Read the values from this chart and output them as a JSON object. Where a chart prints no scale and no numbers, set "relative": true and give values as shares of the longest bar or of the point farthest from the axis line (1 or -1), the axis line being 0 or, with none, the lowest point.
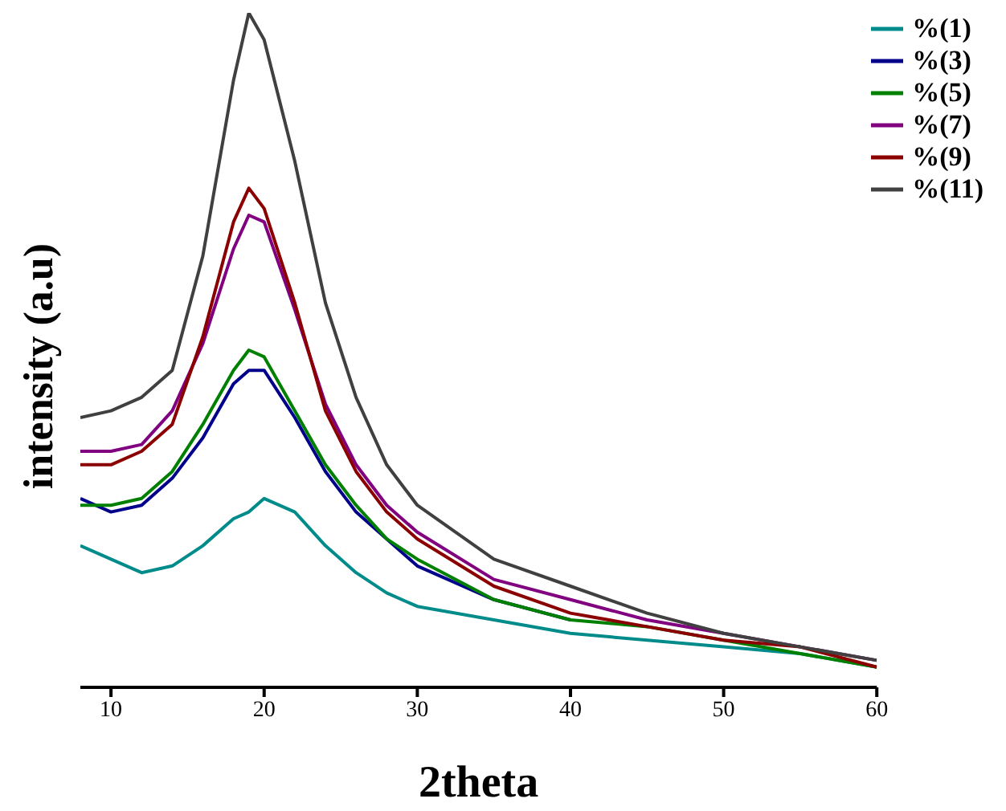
{
  "chart_data": {
    "type": "line",
    "relative": true,
    "xlabel": "2theta",
    "ylabel": "intensity (a.u)",
    "x": [
      8,
      10,
      12,
      14,
      16,
      18,
      19,
      20,
      22,
      24,
      26,
      28,
      30,
      35,
      40,
      45,
      50,
      55,
      60
    ],
    "xlim": [
      8,
      60
    ],
    "xticks": [
      10,
      20,
      30,
      40,
      50,
      60
    ],
    "legend": "top right",
    "marker": "none",
    "line_style": "solid",
    "grid": false,
    "series": [
      {
        "name": "%(1)",
        "color": "#008b8b",
        "values": [
          0.21,
          0.19,
          0.17,
          0.18,
          0.21,
          0.25,
          0.26,
          0.28,
          0.26,
          0.21,
          0.17,
          0.14,
          0.12,
          0.1,
          0.08,
          0.07,
          0.06,
          0.05,
          0.03
        ]
      },
      {
        "name": "%(3)",
        "color": "#00008b",
        "values": [
          0.28,
          0.26,
          0.27,
          0.31,
          0.37,
          0.45,
          0.47,
          0.47,
          0.4,
          0.32,
          0.26,
          0.22,
          0.18,
          0.13,
          0.1,
          null,
          null,
          null,
          null
        ]
      },
      {
        "name": "%(5)",
        "color": "#008000",
        "values": [
          0.27,
          0.27,
          0.28,
          0.32,
          0.39,
          0.47,
          0.5,
          0.49,
          0.41,
          0.33,
          0.27,
          0.22,
          0.19,
          0.13,
          0.1,
          0.09,
          0.07,
          0.05,
          0.03
        ]
      },
      {
        "name": "%(7)",
        "color": "#800080",
        "values": [
          0.35,
          0.35,
          0.36,
          0.41,
          0.51,
          0.65,
          0.7,
          0.69,
          0.56,
          0.42,
          0.33,
          0.27,
          0.23,
          0.16,
          0.13,
          0.1,
          0.08,
          0.06,
          0.04
        ]
      },
      {
        "name": "%(9)",
        "color": "#8b0000",
        "values": [
          0.33,
          0.33,
          0.35,
          0.39,
          0.52,
          0.69,
          0.74,
          0.71,
          0.57,
          0.41,
          0.32,
          0.26,
          0.22,
          0.15,
          0.11,
          0.09,
          0.07,
          0.06,
          0.03
        ]
      },
      {
        "name": "%(11)",
        "color": "#404040",
        "values": [
          0.4,
          0.41,
          0.43,
          0.47,
          0.64,
          0.9,
          1,
          0.96,
          0.78,
          0.57,
          0.43,
          0.33,
          0.27,
          0.19,
          0.15,
          0.11,
          0.08,
          0.06,
          0.04
        ]
      }
    ]
  }
}
